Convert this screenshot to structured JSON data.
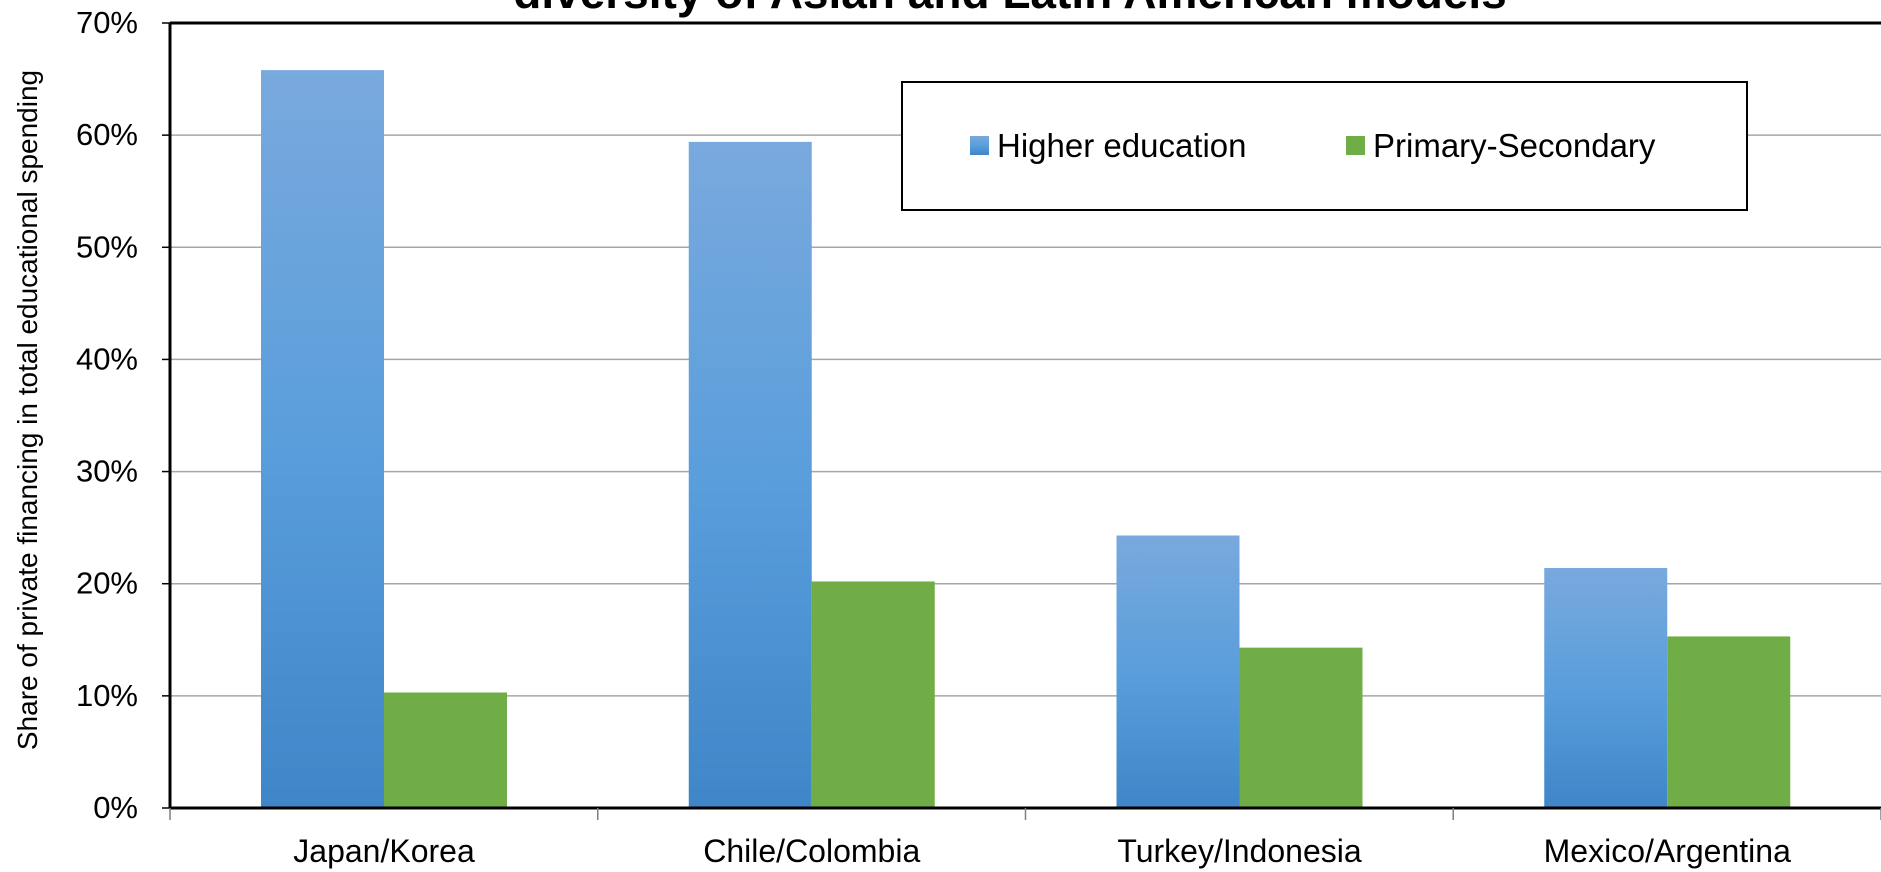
{
  "chart_data": {
    "type": "bar",
    "title": "diversity of Asian and Latin American models",
    "xlabel": "",
    "ylabel": "Share of private financing in total educational spending",
    "categories": [
      "Japan/Korea",
      "Chile/Colombia",
      "Turkey/Indonesia",
      "Mexico/Argentina"
    ],
    "series": [
      {
        "name": "Higher education",
        "values": [
          65.8,
          59.4,
          24.3,
          21.4
        ],
        "color": "#4a8fd4"
      },
      {
        "name": "Primary-Secondary",
        "values": [
          10.3,
          20.2,
          14.3,
          15.3
        ],
        "color": "#70ad47"
      }
    ],
    "ylim": [
      0,
      70
    ],
    "yticks": [
      0,
      10,
      20,
      30,
      40,
      50,
      60,
      70
    ],
    "ytick_labels": [
      "0%",
      "10%",
      "20%",
      "30%",
      "40%",
      "50%",
      "60%",
      "70%"
    ],
    "grid": true,
    "legend": "top-right, inside plot"
  }
}
